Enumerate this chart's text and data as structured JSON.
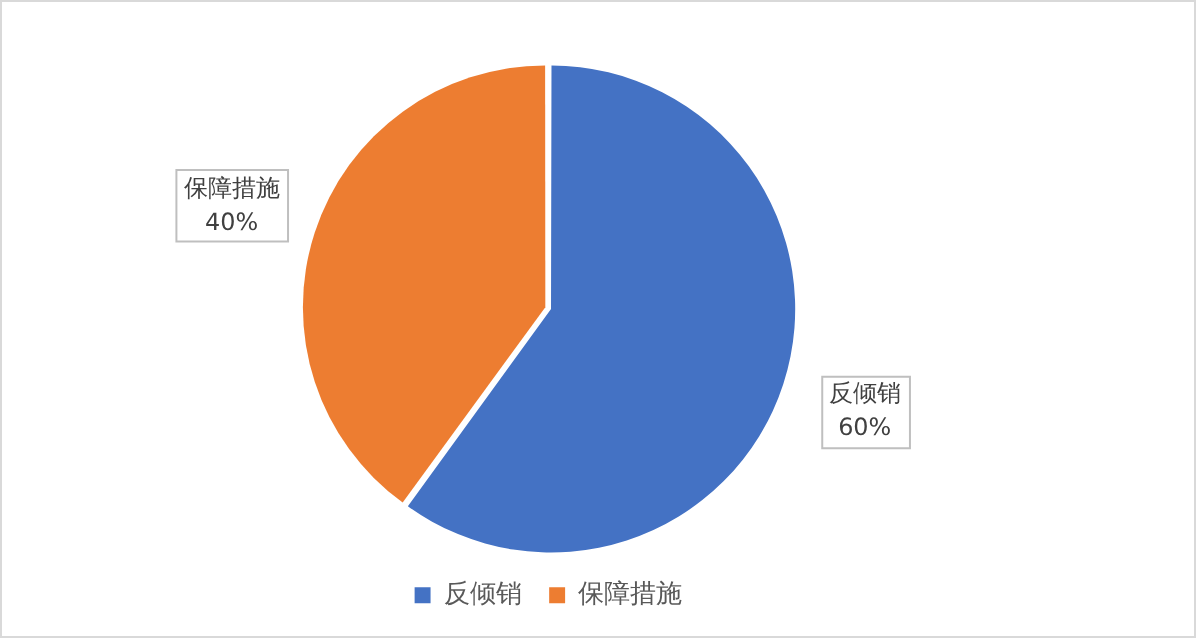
{
  "chart_data": {
    "type": "pie",
    "categories": [
      "反倾销",
      "保障措施"
    ],
    "values": [
      60,
      40
    ],
    "colors": [
      "#4472c4",
      "#ed7d31"
    ],
    "value_labels": [
      "60%",
      "40%"
    ],
    "legend": "bottom"
  }
}
